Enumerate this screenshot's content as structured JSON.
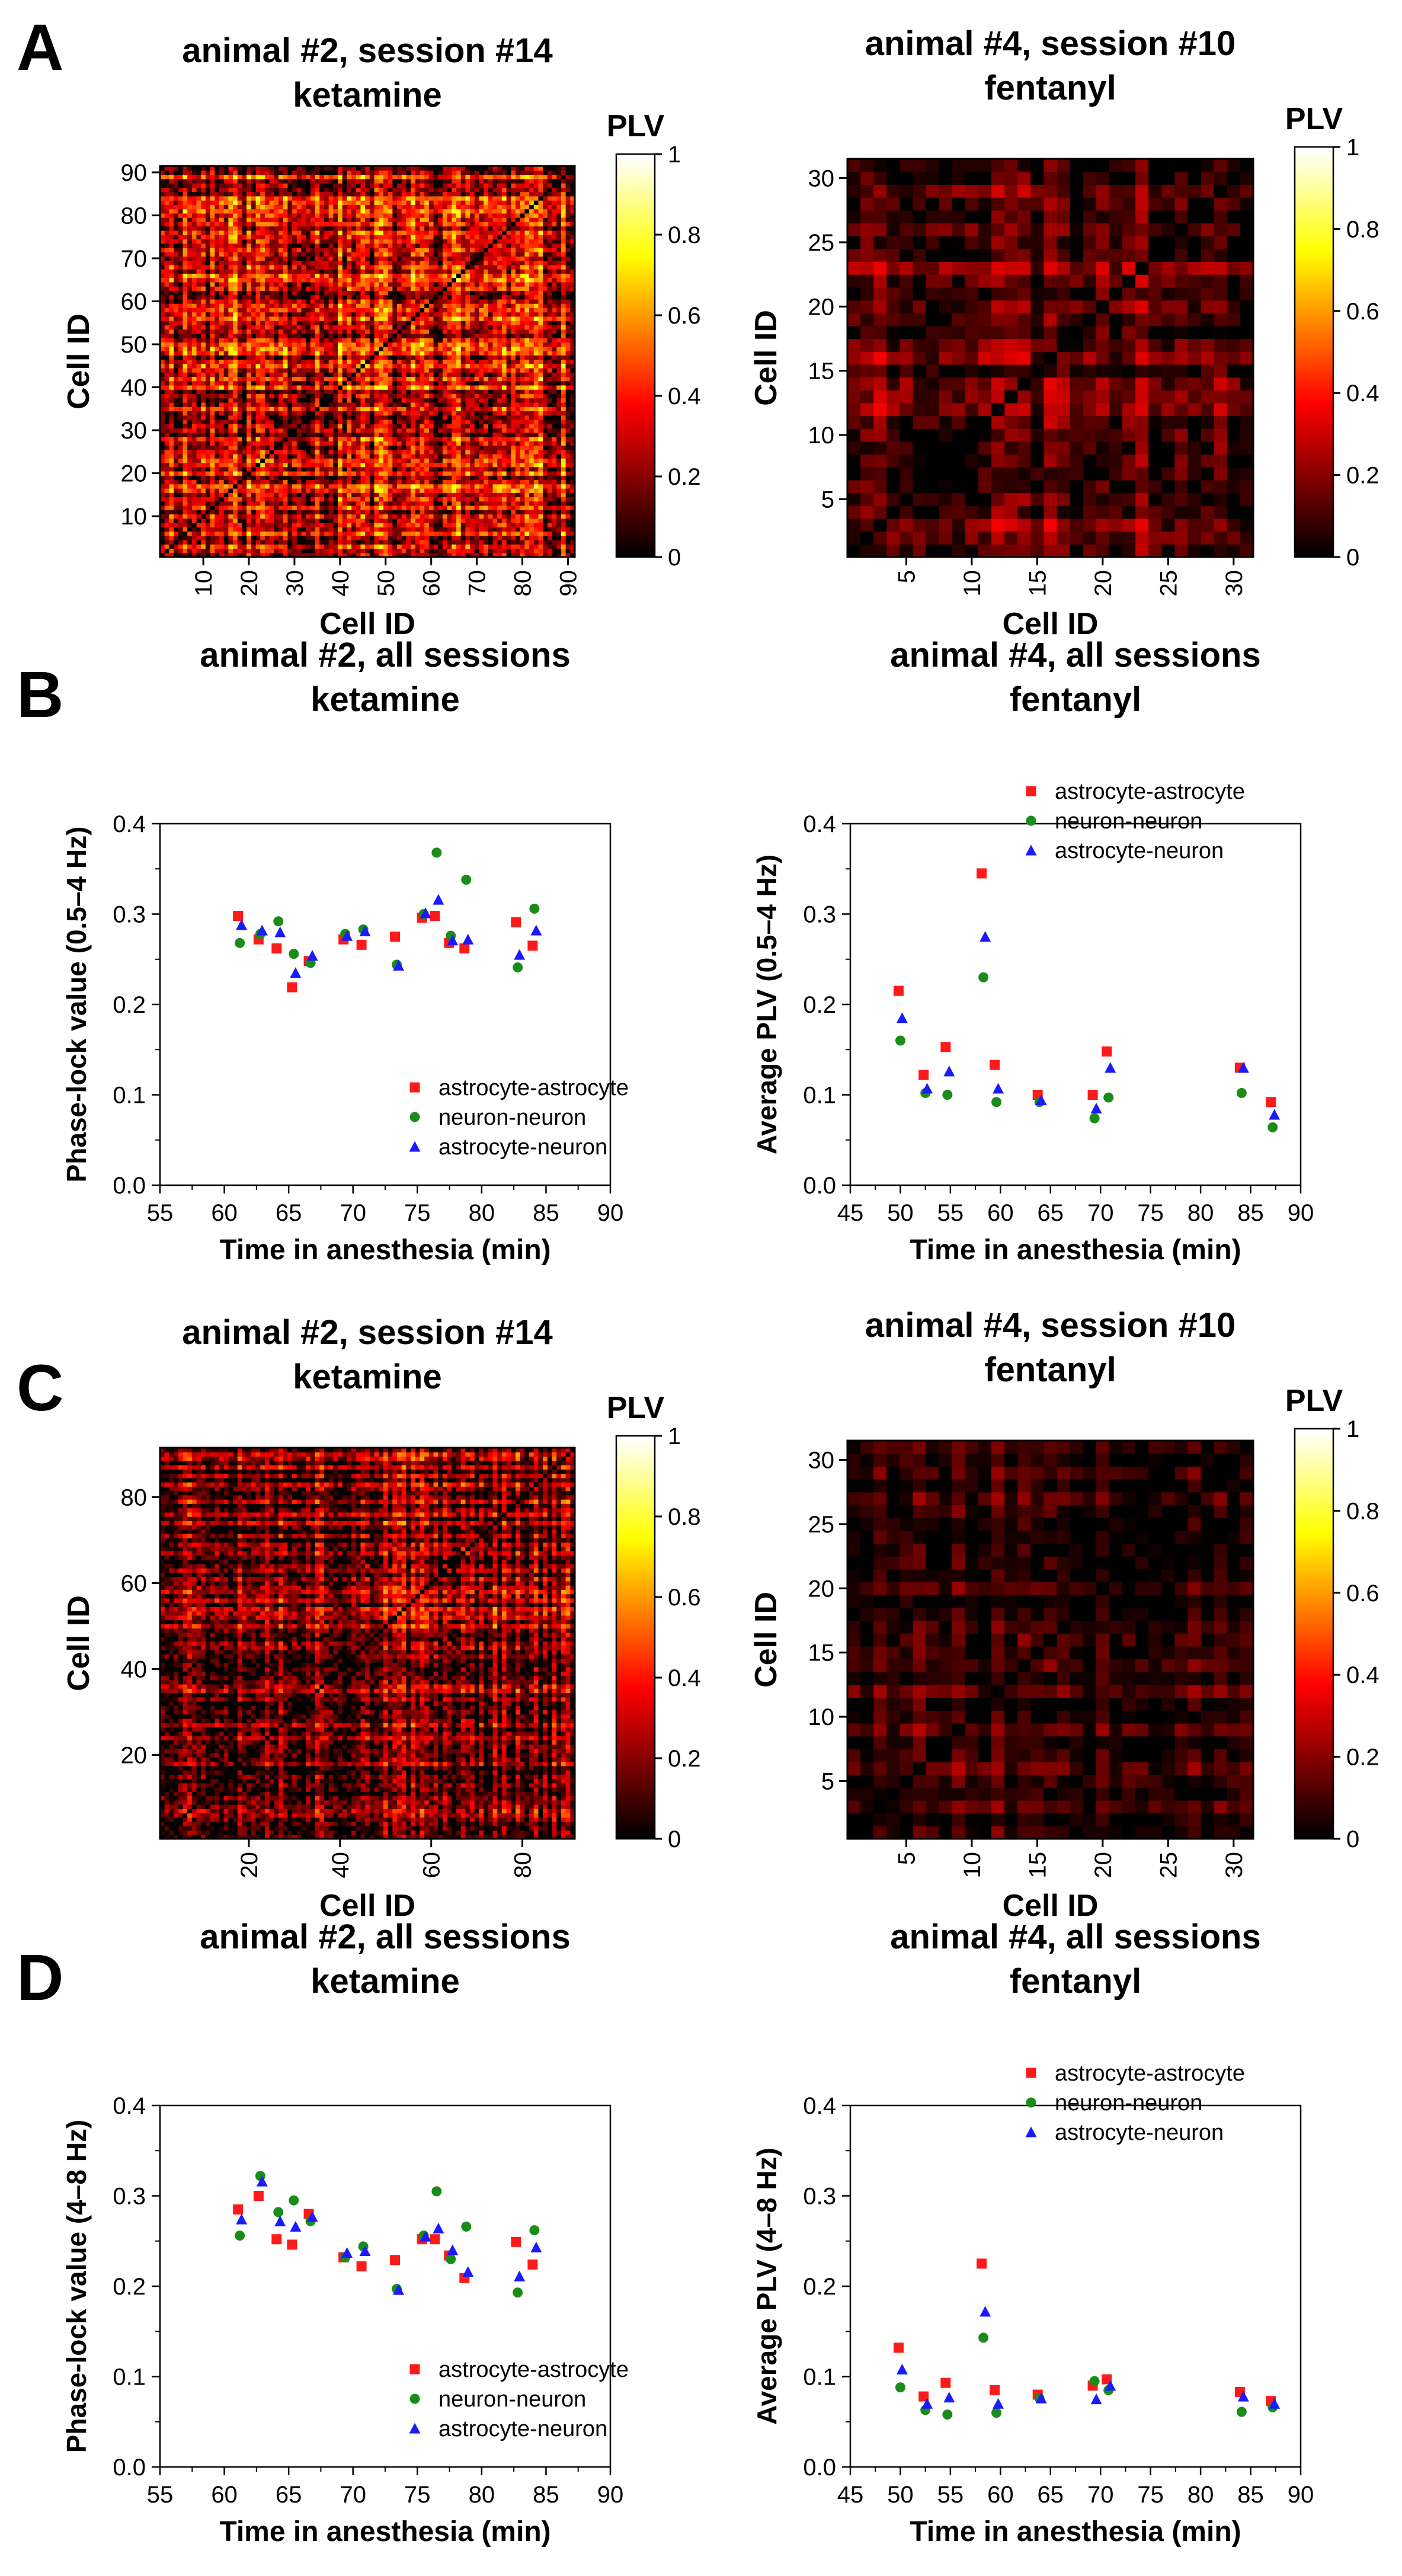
{
  "colors": {
    "astrocyte_astrocyte": "#ff1a1a",
    "neuron_neuron": "#1a8c1a",
    "astrocyte_neuron": "#1a1aff"
  },
  "chart_data": [
    {
      "id": "A1",
      "type": "heatmap",
      "panel_letter": "A",
      "title": "animal #2, session #14",
      "subtitle": "ketamine",
      "xlabel": "Cell ID",
      "ylabel": "Cell ID",
      "n_cells": 91,
      "seed": 11,
      "base": 0.32,
      "spread": 0.5,
      "x_ticks": [
        "10",
        "20",
        "30",
        "40",
        "50",
        "60",
        "70",
        "80",
        "90"
      ],
      "y_ticks": [
        "10",
        "20",
        "30",
        "40",
        "50",
        "60",
        "70",
        "80",
        "90"
      ],
      "colorbar": {
        "label": "PLV",
        "range": [
          0,
          1
        ],
        "ticks": [
          "0",
          "0.2",
          "0.4",
          "0.6",
          "0.8",
          "1"
        ]
      }
    },
    {
      "id": "A2",
      "type": "heatmap",
      "title": "animal #4, session #10",
      "subtitle": "fentanyl",
      "xlabel": "Cell ID",
      "ylabel": "Cell ID",
      "n_cells": 31,
      "seed": 23,
      "base": 0.16,
      "spread": 0.26,
      "x_ticks": [
        "5",
        "10",
        "15",
        "20",
        "25",
        "30"
      ],
      "y_ticks": [
        "5",
        "10",
        "15",
        "20",
        "25",
        "30"
      ],
      "colorbar": {
        "label": "PLV",
        "range": [
          0,
          1
        ],
        "ticks": [
          "0",
          "0.2",
          "0.4",
          "0.6",
          "0.8",
          "1"
        ]
      }
    },
    {
      "id": "B1",
      "type": "scatter",
      "panel_letter": "B",
      "title": "animal #2, all sessions",
      "subtitle": "ketamine",
      "xlabel": "Time in anesthesia (min)",
      "ylabel": "Phase-lock value (0.5–4 Hz)",
      "xlim": [
        55,
        90
      ],
      "ylim": [
        0,
        0.4
      ],
      "x_ticks": [
        "55",
        "60",
        "65",
        "70",
        "75",
        "80",
        "85",
        "90"
      ],
      "y_ticks": [
        "0.0",
        "0.1",
        "0.2",
        "0.3",
        "0.4"
      ],
      "legend": "bottom-right",
      "series": [
        {
          "name": "astrocyte-astrocyte",
          "x": [
            61.2,
            62.8,
            64.2,
            65.4,
            66.7,
            69.4,
            70.8,
            73.4,
            75.5,
            76.5,
            77.6,
            78.8,
            82.8,
            84.1
          ],
          "y": [
            0.298,
            0.272,
            0.262,
            0.219,
            0.248,
            0.272,
            0.266,
            0.275,
            0.296,
            0.298,
            0.268,
            0.262,
            0.291,
            0.265
          ]
        },
        {
          "name": "neuron-neuron",
          "x": [
            61.2,
            62.8,
            64.2,
            65.4,
            66.7,
            69.4,
            70.8,
            73.4,
            75.5,
            76.5,
            77.6,
            78.8,
            82.8,
            84.1
          ],
          "y": [
            0.268,
            0.278,
            0.292,
            0.256,
            0.246,
            0.278,
            0.283,
            0.244,
            0.3,
            0.368,
            0.276,
            0.338,
            0.241,
            0.306
          ]
        },
        {
          "name": "astrocyte-neuron",
          "x": [
            61.2,
            62.8,
            64.2,
            65.4,
            66.7,
            69.4,
            70.8,
            73.4,
            75.5,
            76.5,
            77.6,
            78.8,
            82.8,
            84.1
          ],
          "y": [
            0.288,
            0.282,
            0.28,
            0.235,
            0.254,
            0.276,
            0.281,
            0.243,
            0.301,
            0.316,
            0.271,
            0.272,
            0.255,
            0.282
          ]
        }
      ]
    },
    {
      "id": "B2",
      "type": "scatter",
      "title": "animal #4, all sessions",
      "subtitle": "fentanyl",
      "xlabel": "Time in anesthesia (min)",
      "ylabel": "Average PLV (0.5–4 Hz)",
      "xlim": [
        45,
        90
      ],
      "ylim": [
        0,
        0.4
      ],
      "x_ticks": [
        "45",
        "50",
        "55",
        "60",
        "65",
        "70",
        "75",
        "80",
        "85",
        "90"
      ],
      "y_ticks": [
        "0.0",
        "0.1",
        "0.2",
        "0.3",
        "0.4"
      ],
      "legend": "top-right",
      "series": [
        {
          "name": "astrocyte-astrocyte",
          "x": [
            50,
            52.5,
            54.7,
            58.3,
            59.6,
            63.9,
            69.4,
            70.8,
            84.1,
            87.2
          ],
          "y": [
            0.215,
            0.122,
            0.153,
            0.345,
            0.133,
            0.1,
            0.1,
            0.148,
            0.13,
            0.092
          ]
        },
        {
          "name": "neuron-neuron",
          "x": [
            50,
            52.5,
            54.7,
            58.3,
            59.6,
            63.9,
            69.4,
            70.8,
            84.1,
            87.2
          ],
          "y": [
            0.16,
            0.102,
            0.1,
            0.23,
            0.092,
            0.092,
            0.074,
            0.097,
            0.102,
            0.064
          ]
        },
        {
          "name": "astrocyte-neuron",
          "x": [
            50,
            52.5,
            54.7,
            58.3,
            59.6,
            63.9,
            69.4,
            70.8,
            84.1,
            87.2
          ],
          "y": [
            0.185,
            0.107,
            0.126,
            0.275,
            0.107,
            0.094,
            0.085,
            0.13,
            0.13,
            0.078
          ]
        }
      ]
    },
    {
      "id": "C1",
      "type": "heatmap",
      "panel_letter": "C",
      "title": "animal #2, session #14",
      "subtitle": "ketamine",
      "xlabel": "Cell ID",
      "ylabel": "Cell ID",
      "n_cells": 91,
      "seed": 37,
      "base": 0.22,
      "spread": 0.42,
      "x_ticks": [
        "20",
        "40",
        "60",
        "80"
      ],
      "y_ticks": [
        "20",
        "40",
        "60",
        "80"
      ],
      "colorbar": {
        "label": "PLV",
        "range": [
          0,
          1
        ],
        "ticks": [
          "0",
          "0.2",
          "0.4",
          "0.6",
          "0.8",
          "1"
        ]
      }
    },
    {
      "id": "C2",
      "type": "heatmap",
      "title": "animal #4, session #10",
      "subtitle": "fentanyl",
      "xlabel": "Cell ID",
      "ylabel": "Cell ID",
      "n_cells": 31,
      "seed": 53,
      "base": 0.1,
      "spread": 0.2,
      "x_ticks": [
        "5",
        "10",
        "15",
        "20",
        "25",
        "30"
      ],
      "y_ticks": [
        "5",
        "10",
        "15",
        "20",
        "25",
        "30"
      ],
      "colorbar": {
        "label": "PLV",
        "range": [
          0,
          1
        ],
        "ticks": [
          "0",
          "0.2",
          "0.4",
          "0.6",
          "0.8",
          "1"
        ]
      }
    },
    {
      "id": "D1",
      "type": "scatter",
      "panel_letter": "D",
      "title": "animal #2, all sessions",
      "subtitle": "ketamine",
      "xlabel": "Time in anesthesia (min)",
      "ylabel": "Phase-lock value (4–8 Hz)",
      "xlim": [
        55,
        90
      ],
      "ylim": [
        0,
        0.4
      ],
      "x_ticks": [
        "55",
        "60",
        "65",
        "70",
        "75",
        "80",
        "85",
        "90"
      ],
      "y_ticks": [
        "0.0",
        "0.1",
        "0.2",
        "0.3",
        "0.4"
      ],
      "legend": "bottom-right",
      "series": [
        {
          "name": "astrocyte-astrocyte",
          "x": [
            61.2,
            62.8,
            64.2,
            65.4,
            66.7,
            69.4,
            70.8,
            73.4,
            75.5,
            76.5,
            77.6,
            78.8,
            82.8,
            84.1
          ],
          "y": [
            0.285,
            0.3,
            0.252,
            0.246,
            0.28,
            0.232,
            0.222,
            0.229,
            0.252,
            0.252,
            0.234,
            0.209,
            0.249,
            0.224
          ]
        },
        {
          "name": "neuron-neuron",
          "x": [
            61.2,
            62.8,
            64.2,
            65.4,
            66.7,
            69.4,
            70.8,
            73.4,
            75.5,
            76.5,
            77.6,
            78.8,
            82.8,
            84.1
          ],
          "y": [
            0.256,
            0.322,
            0.282,
            0.295,
            0.272,
            0.232,
            0.244,
            0.197,
            0.256,
            0.305,
            0.23,
            0.266,
            0.193,
            0.262
          ]
        },
        {
          "name": "astrocyte-neuron",
          "x": [
            61.2,
            62.8,
            64.2,
            65.4,
            66.7,
            69.4,
            70.8,
            73.4,
            75.5,
            76.5,
            77.6,
            78.8,
            82.8,
            84.1
          ],
          "y": [
            0.274,
            0.316,
            0.272,
            0.266,
            0.277,
            0.237,
            0.239,
            0.196,
            0.255,
            0.264,
            0.24,
            0.216,
            0.211,
            0.243
          ]
        }
      ]
    },
    {
      "id": "D2",
      "type": "scatter",
      "title": "animal #4, all sessions",
      "subtitle": "fentanyl",
      "xlabel": "Time in anesthesia (min)",
      "ylabel": "Average PLV (4–8 Hz)",
      "xlim": [
        45,
        90
      ],
      "ylim": [
        0,
        0.4
      ],
      "x_ticks": [
        "45",
        "50",
        "55",
        "60",
        "65",
        "70",
        "75",
        "80",
        "85",
        "90"
      ],
      "y_ticks": [
        "0.0",
        "0.1",
        "0.2",
        "0.3",
        "0.4"
      ],
      "legend": "top-right",
      "series": [
        {
          "name": "astrocyte-astrocyte",
          "x": [
            50,
            52.5,
            54.7,
            58.3,
            59.6,
            63.9,
            69.4,
            70.8,
            84.1,
            87.2
          ],
          "y": [
            0.132,
            0.078,
            0.093,
            0.225,
            0.085,
            0.08,
            0.09,
            0.097,
            0.083,
            0.073
          ]
        },
        {
          "name": "neuron-neuron",
          "x": [
            50,
            52.5,
            54.7,
            58.3,
            59.6,
            63.9,
            69.4,
            70.8,
            84.1,
            87.2
          ],
          "y": [
            0.088,
            0.063,
            0.058,
            0.143,
            0.06,
            0.076,
            0.095,
            0.085,
            0.061,
            0.066
          ]
        },
        {
          "name": "astrocyte-neuron",
          "x": [
            50,
            52.5,
            54.7,
            58.3,
            59.6,
            63.9,
            69.4,
            70.8,
            84.1,
            87.2
          ],
          "y": [
            0.108,
            0.07,
            0.077,
            0.172,
            0.07,
            0.076,
            0.075,
            0.09,
            0.078,
            0.07
          ]
        }
      ]
    }
  ]
}
